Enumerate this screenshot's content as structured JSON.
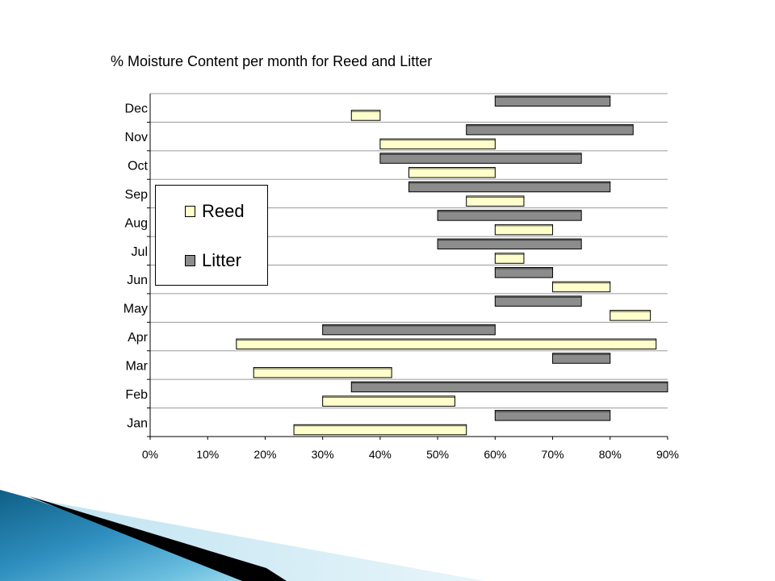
{
  "chart_data": {
    "type": "bar",
    "subtype": "floating-range-horizontal",
    "title": "% Moisture Content per month for Reed and Litter",
    "categories": [
      "Jan",
      "Feb",
      "Mar",
      "Apr",
      "May",
      "Jun",
      "Jul",
      "Aug",
      "Sep",
      "Oct",
      "Nov",
      "Dec"
    ],
    "xlim": [
      0,
      90
    ],
    "x_ticks": [
      "0%",
      "10%",
      "20%",
      "30%",
      "40%",
      "50%",
      "60%",
      "70%",
      "80%",
      "90%"
    ],
    "grid": "horizontal",
    "legend_position": "left-middle",
    "series": [
      {
        "name": "Reed",
        "color": "#ffffcc",
        "ranges": [
          [
            25,
            55
          ],
          [
            30,
            53
          ],
          [
            18,
            42
          ],
          [
            15,
            88
          ],
          [
            80,
            87
          ],
          [
            70,
            80
          ],
          [
            60,
            65
          ],
          [
            60,
            70
          ],
          [
            55,
            65
          ],
          [
            45,
            60
          ],
          [
            40,
            60
          ],
          [
            35,
            40
          ]
        ]
      },
      {
        "name": "Litter",
        "color": "#8c8c8c",
        "ranges": [
          [
            60,
            80
          ],
          [
            35,
            90
          ],
          [
            70,
            80
          ],
          [
            30,
            60
          ],
          [
            60,
            75
          ],
          [
            60,
            70
          ],
          [
            50,
            75
          ],
          [
            50,
            75
          ],
          [
            45,
            80
          ],
          [
            40,
            75
          ],
          [
            55,
            84
          ],
          [
            60,
            80
          ]
        ]
      }
    ]
  },
  "legend": {
    "items": [
      {
        "label": "Reed",
        "color": "#ffffcc"
      },
      {
        "label": "Litter",
        "color": "#8c8c8c"
      }
    ]
  },
  "decor": {
    "accent_colors": [
      "#1a6e93",
      "#4aa9d2",
      "#9fd3e6",
      "#000000"
    ]
  }
}
